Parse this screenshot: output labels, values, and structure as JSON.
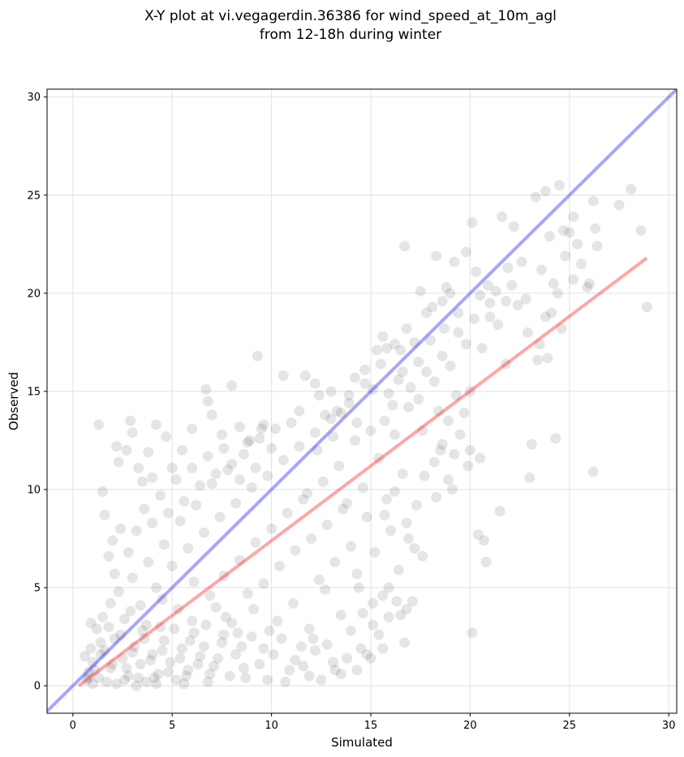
{
  "chart_data": {
    "type": "scatter",
    "title_line1": "X-Y plot at vi.vegagerdin.36386 for wind_speed_at_10m_agl",
    "title_line2": "from 12-18h during winter",
    "xlabel": "Simulated",
    "ylabel": "Observed",
    "xlim": [
      -1.3,
      30.4
    ],
    "ylim": [
      -1.4,
      30.4
    ],
    "xticks": [
      0,
      5,
      10,
      15,
      20,
      25,
      30
    ],
    "yticks": [
      0,
      5,
      10,
      15,
      20,
      25,
      30
    ],
    "grid": true,
    "point_color": "#000000",
    "point_alpha": 0.1,
    "identity_line": {
      "color": "#0000ff",
      "alpha": 0.35,
      "x": [
        -1.3,
        30.4
      ],
      "y": [
        -1.3,
        30.4
      ]
    },
    "fit_line": {
      "color": "#ff0000",
      "alpha": 0.35,
      "x": [
        0.3,
        28.9
      ],
      "y": [
        0.0,
        21.8
      ]
    },
    "points": [
      [
        0.9,
        3.2
      ],
      [
        1.3,
        13.3
      ],
      [
        1.5,
        9.9
      ],
      [
        1.6,
        8.7
      ],
      [
        1.8,
        6.6
      ],
      [
        2.1,
        5.7
      ],
      [
        2.2,
        12.2
      ],
      [
        2.3,
        11.4
      ],
      [
        2.7,
        12.0
      ],
      [
        2.9,
        13.5
      ],
      [
        3.0,
        12.9
      ],
      [
        3.3,
        11.1
      ],
      [
        3.5,
        10.4
      ],
      [
        3.8,
        11.9
      ],
      [
        4.0,
        10.6
      ],
      [
        4.2,
        13.3
      ],
      [
        4.7,
        12.7
      ],
      [
        5.0,
        11.1
      ],
      [
        5.5,
        12.0
      ],
      [
        6.0,
        13.1
      ],
      [
        6.7,
        15.1
      ],
      [
        6.8,
        14.5
      ],
      [
        7.0,
        13.8
      ],
      [
        7.5,
        12.8
      ],
      [
        8.0,
        15.3
      ],
      [
        8.4,
        13.2
      ],
      [
        8.9,
        12.5
      ],
      [
        9.3,
        16.8
      ],
      [
        9.5,
        13.1
      ],
      [
        10.0,
        12.1
      ],
      [
        10.6,
        15.8
      ],
      [
        11.4,
        14.0
      ],
      [
        11.7,
        15.8
      ],
      [
        12.2,
        15.4
      ],
      [
        12.4,
        14.8
      ],
      [
        13.0,
        15.0
      ],
      [
        13.3,
        14.0
      ],
      [
        13.9,
        14.4
      ],
      [
        14.2,
        15.7
      ],
      [
        14.7,
        15.4
      ],
      [
        15.3,
        17.1
      ],
      [
        15.6,
        17.8
      ],
      [
        15.8,
        17.2
      ],
      [
        16.2,
        17.4
      ],
      [
        16.5,
        17.1
      ],
      [
        16.7,
        22.4
      ],
      [
        16.8,
        18.2
      ],
      [
        17.2,
        17.5
      ],
      [
        17.5,
        20.1
      ],
      [
        17.8,
        19.0
      ],
      [
        18.1,
        19.3
      ],
      [
        18.3,
        21.9
      ],
      [
        18.6,
        19.6
      ],
      [
        18.8,
        20.3
      ],
      [
        19.0,
        20.0
      ],
      [
        19.2,
        21.6
      ],
      [
        19.4,
        19.0
      ],
      [
        19.8,
        22.1
      ],
      [
        20.1,
        23.6
      ],
      [
        20.5,
        19.9
      ],
      [
        21.0,
        18.8
      ],
      [
        21.3,
        20.1
      ],
      [
        21.6,
        23.9
      ],
      [
        21.8,
        19.6
      ],
      [
        22.1,
        20.4
      ],
      [
        22.2,
        23.4
      ],
      [
        22.8,
        19.7
      ],
      [
        23.3,
        24.9
      ],
      [
        23.6,
        21.2
      ],
      [
        23.8,
        25.2
      ],
      [
        24.0,
        22.9
      ],
      [
        24.2,
        20.5
      ],
      [
        24.5,
        25.5
      ],
      [
        24.7,
        23.2
      ],
      [
        25.0,
        23.1
      ],
      [
        25.2,
        23.9
      ],
      [
        25.4,
        22.5
      ],
      [
        26.0,
        20.5
      ],
      [
        26.2,
        24.7
      ],
      [
        26.4,
        22.4
      ],
      [
        26.3,
        23.3
      ],
      [
        27.5,
        24.5
      ],
      [
        28.1,
        25.3
      ],
      [
        28.6,
        23.2
      ],
      [
        28.9,
        19.3
      ],
      [
        26.2,
        10.9
      ],
      [
        24.3,
        12.6
      ],
      [
        23.9,
        16.7
      ],
      [
        23.4,
        16.6
      ],
      [
        23.1,
        12.3
      ],
      [
        23.0,
        10.6
      ],
      [
        21.5,
        8.9
      ],
      [
        20.8,
        6.3
      ],
      [
        20.7,
        7.4
      ],
      [
        20.4,
        7.7
      ],
      [
        20.1,
        2.7
      ],
      [
        20.0,
        12.0
      ],
      [
        20.5,
        11.6
      ],
      [
        19.9,
        11.2
      ],
      [
        19.5,
        12.8
      ],
      [
        19.2,
        11.8
      ],
      [
        18.9,
        10.5
      ],
      [
        18.6,
        12.3
      ],
      [
        18.2,
        11.4
      ],
      [
        17.6,
        6.6
      ],
      [
        17.1,
        4.3
      ],
      [
        16.9,
        7.5
      ],
      [
        16.5,
        3.6
      ],
      [
        16.3,
        4.3
      ],
      [
        15.9,
        3.5
      ],
      [
        15.6,
        1.9
      ],
      [
        15.4,
        2.6
      ],
      [
        15.1,
        4.2
      ],
      [
        15.0,
        1.4
      ],
      [
        14.8,
        1.6
      ],
      [
        14.6,
        3.7
      ],
      [
        14.3,
        0.8
      ],
      [
        14.0,
        2.8
      ],
      [
        13.8,
        1.4
      ],
      [
        13.5,
        0.6
      ],
      [
        13.1,
        1.2
      ],
      [
        12.8,
        2.1
      ],
      [
        12.5,
        0.3
      ],
      [
        12.2,
        1.8
      ],
      [
        11.9,
        0.5
      ],
      [
        11.5,
        2.0
      ],
      [
        11.2,
        1.3
      ],
      [
        10.9,
        0.8
      ],
      [
        10.5,
        2.4
      ],
      [
        10.1,
        1.6
      ],
      [
        9.8,
        0.3
      ],
      [
        9.4,
        1.1
      ],
      [
        9.0,
        2.5
      ],
      [
        8.6,
        0.9
      ],
      [
        8.2,
        1.6
      ],
      [
        7.9,
        0.5
      ],
      [
        7.5,
        2.2
      ],
      [
        7.1,
        1.0
      ],
      [
        6.8,
        0.2
      ],
      [
        6.4,
        1.5
      ],
      [
        6.1,
        2.7
      ],
      [
        5.8,
        0.8
      ],
      [
        5.5,
        1.9
      ],
      [
        5.2,
        0.3
      ],
      [
        4.9,
        1.2
      ],
      [
        4.6,
        2.3
      ],
      [
        4.3,
        0.6
      ],
      [
        4.0,
        1.6
      ],
      [
        3.7,
        0.2
      ],
      [
        3.4,
        1.1
      ],
      [
        3.1,
        2.0
      ],
      [
        2.8,
        0.5
      ],
      [
        2.5,
        1.4
      ],
      [
        2.2,
        0.1
      ],
      [
        1.9,
        0.9
      ],
      [
        1.6,
        1.8
      ],
      [
        1.3,
        0.4
      ],
      [
        1.0,
        1.2
      ],
      [
        0.8,
        0.7
      ],
      [
        0.6,
        1.5
      ],
      [
        0.7,
        0.3
      ],
      [
        1.1,
        0.8
      ],
      [
        1.4,
        1.6
      ],
      [
        1.7,
        0.2
      ],
      [
        2.0,
        1.1
      ],
      [
        2.4,
        2.6
      ],
      [
        2.7,
        0.9
      ],
      [
        3.0,
        1.7
      ],
      [
        3.3,
        0.4
      ],
      [
        3.6,
        2.4
      ],
      [
        3.9,
        1.3
      ],
      [
        4.2,
        0.1
      ],
      [
        4.5,
        1.8
      ],
      [
        4.8,
        0.7
      ],
      [
        5.1,
        2.9
      ],
      [
        5.4,
        1.4
      ],
      [
        5.7,
        0.5
      ],
      [
        6.0,
        3.3
      ],
      [
        6.3,
        1.1
      ],
      [
        6.6,
        2.0
      ],
      [
        1.2,
        2.9
      ],
      [
        1.5,
        3.5
      ],
      [
        1.9,
        4.2
      ],
      [
        2.3,
        4.8
      ],
      [
        2.6,
        3.4
      ],
      [
        3.0,
        5.5
      ],
      [
        3.4,
        4.1
      ],
      [
        3.8,
        6.3
      ],
      [
        4.2,
        5.0
      ],
      [
        4.6,
        7.2
      ],
      [
        5.0,
        6.1
      ],
      [
        5.4,
        8.4
      ],
      [
        5.8,
        7.0
      ],
      [
        6.2,
        9.2
      ],
      [
        6.6,
        7.8
      ],
      [
        7.0,
        10.3
      ],
      [
        7.4,
        8.6
      ],
      [
        7.8,
        11.0
      ],
      [
        8.2,
        9.3
      ],
      [
        8.6,
        11.8
      ],
      [
        9.0,
        10.1
      ],
      [
        9.4,
        12.6
      ],
      [
        9.8,
        10.7
      ],
      [
        10.2,
        13.1
      ],
      [
        10.6,
        11.5
      ],
      [
        11.0,
        13.4
      ],
      [
        11.4,
        12.2
      ],
      [
        11.8,
        9.8
      ],
      [
        12.2,
        12.9
      ],
      [
        12.6,
        10.4
      ],
      [
        13.0,
        13.6
      ],
      [
        13.4,
        11.2
      ],
      [
        13.8,
        9.3
      ],
      [
        14.2,
        12.5
      ],
      [
        14.6,
        10.1
      ],
      [
        15.0,
        13.0
      ],
      [
        15.4,
        11.6
      ],
      [
        15.8,
        9.5
      ],
      [
        16.2,
        12.8
      ],
      [
        16.6,
        10.8
      ],
      [
        7.2,
        4.0
      ],
      [
        7.6,
        5.6
      ],
      [
        8.0,
        3.2
      ],
      [
        8.4,
        6.4
      ],
      [
        8.8,
        4.7
      ],
      [
        9.2,
        7.3
      ],
      [
        9.6,
        5.2
      ],
      [
        10.0,
        8.0
      ],
      [
        10.4,
        6.1
      ],
      [
        10.8,
        8.8
      ],
      [
        11.2,
        6.9
      ],
      [
        11.6,
        9.5
      ],
      [
        12.0,
        7.5
      ],
      [
        12.4,
        5.4
      ],
      [
        12.8,
        8.2
      ],
      [
        13.2,
        6.3
      ],
      [
        13.6,
        9.0
      ],
      [
        14.0,
        7.1
      ],
      [
        14.4,
        5.0
      ],
      [
        14.8,
        8.6
      ],
      [
        15.2,
        6.8
      ],
      [
        15.6,
        4.6
      ],
      [
        16.0,
        7.9
      ],
      [
        16.4,
        5.9
      ],
      [
        16.8,
        3.9
      ],
      [
        17.2,
        7.0
      ],
      [
        10.3,
        3.3
      ],
      [
        11.1,
        4.2
      ],
      [
        11.9,
        2.9
      ],
      [
        12.7,
        4.9
      ],
      [
        13.5,
        3.6
      ],
      [
        14.3,
        5.7
      ],
      [
        15.1,
        3.1
      ],
      [
        15.9,
        5.0
      ],
      [
        16.7,
        2.2
      ],
      [
        9.1,
        3.9
      ],
      [
        8.3,
        2.7
      ],
      [
        7.7,
        3.5
      ],
      [
        6.9,
        4.6
      ],
      [
        6.1,
        5.3
      ],
      [
        5.3,
        3.9
      ],
      [
        4.5,
        4.4
      ],
      [
        3.7,
        3.1
      ],
      [
        2.9,
        3.8
      ],
      [
        2.1,
        2.4
      ],
      [
        1.8,
        3.0
      ],
      [
        1.4,
        2.2
      ],
      [
        0.9,
        1.9
      ],
      [
        0.8,
        0.4
      ],
      [
        1.0,
        0.1
      ],
      [
        2.6,
        0.3
      ],
      [
        3.2,
        0.0
      ],
      [
        4.1,
        0.4
      ],
      [
        5.6,
        0.1
      ],
      [
        6.9,
        0.6
      ],
      [
        7.3,
        1.4
      ],
      [
        8.7,
        0.4
      ],
      [
        9.6,
        1.9
      ],
      [
        10.7,
        0.2
      ],
      [
        11.6,
        1.0
      ],
      [
        12.1,
        2.4
      ],
      [
        13.2,
        0.8
      ],
      [
        14.5,
        1.9
      ],
      [
        3.5,
        2.8
      ],
      [
        4.4,
        3.0
      ],
      [
        5.9,
        2.3
      ],
      [
        6.7,
        3.1
      ],
      [
        7.6,
        2.6
      ],
      [
        8.5,
        2.0
      ],
      [
        9.9,
        2.8
      ],
      [
        2.0,
        7.4
      ],
      [
        2.4,
        8.0
      ],
      [
        2.8,
        6.8
      ],
      [
        3.2,
        7.9
      ],
      [
        3.6,
        9.0
      ],
      [
        4.0,
        8.3
      ],
      [
        4.4,
        9.7
      ],
      [
        4.8,
        8.8
      ],
      [
        5.2,
        10.5
      ],
      [
        5.6,
        9.4
      ],
      [
        6.0,
        11.1
      ],
      [
        6.4,
        10.2
      ],
      [
        6.8,
        11.7
      ],
      [
        7.2,
        10.8
      ],
      [
        7.6,
        12.1
      ],
      [
        8.0,
        11.3
      ],
      [
        8.4,
        10.5
      ],
      [
        8.8,
        12.4
      ],
      [
        9.2,
        11.1
      ],
      [
        9.6,
        13.3
      ],
      [
        17.0,
        15.2
      ],
      [
        17.4,
        14.6
      ],
      [
        17.8,
        16.0
      ],
      [
        18.2,
        15.5
      ],
      [
        18.6,
        16.8
      ],
      [
        19.0,
        16.3
      ],
      [
        18.4,
        14.0
      ],
      [
        17.6,
        13.0
      ],
      [
        16.9,
        14.2
      ],
      [
        16.4,
        15.6
      ],
      [
        15.9,
        14.9
      ],
      [
        15.5,
        16.4
      ],
      [
        15.1,
        15.1
      ],
      [
        14.7,
        16.1
      ],
      [
        14.3,
        13.4
      ],
      [
        13.9,
        14.8
      ],
      [
        13.5,
        13.9
      ],
      [
        13.1,
        12.7
      ],
      [
        12.7,
        13.8
      ],
      [
        12.3,
        12.0
      ],
      [
        19.4,
        18.0
      ],
      [
        19.8,
        17.4
      ],
      [
        20.2,
        18.7
      ],
      [
        20.6,
        17.2
      ],
      [
        21.0,
        19.5
      ],
      [
        21.4,
        18.4
      ],
      [
        21.8,
        16.4
      ],
      [
        22.4,
        19.4
      ],
      [
        22.9,
        18.0
      ],
      [
        23.5,
        17.4
      ],
      [
        24.1,
        19.0
      ],
      [
        24.6,
        18.2
      ],
      [
        25.2,
        20.7
      ],
      [
        25.6,
        21.5
      ],
      [
        25.9,
        20.3
      ],
      [
        24.8,
        21.9
      ],
      [
        24.4,
        20.0
      ],
      [
        23.8,
        18.8
      ],
      [
        22.6,
        21.6
      ],
      [
        21.9,
        21.3
      ],
      [
        20.9,
        20.4
      ],
      [
        20.3,
        21.1
      ],
      [
        18.7,
        18.2
      ],
      [
        18.0,
        17.6
      ],
      [
        17.4,
        16.5
      ],
      [
        16.6,
        16.0
      ],
      [
        16.1,
        14.3
      ],
      [
        15.7,
        13.5
      ],
      [
        18.5,
        12.0
      ],
      [
        18.9,
        13.5
      ],
      [
        19.3,
        14.8
      ],
      [
        19.7,
        13.9
      ],
      [
        20.0,
        15.0
      ],
      [
        19.1,
        10.0
      ],
      [
        18.3,
        9.6
      ],
      [
        17.7,
        10.7
      ],
      [
        17.3,
        9.2
      ],
      [
        16.8,
        8.3
      ],
      [
        16.2,
        9.9
      ],
      [
        15.7,
        8.7
      ]
    ]
  }
}
